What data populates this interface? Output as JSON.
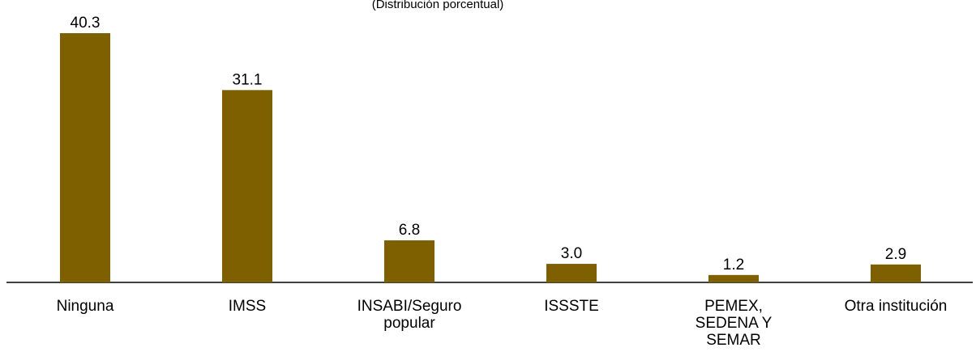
{
  "chart_data": {
    "type": "bar",
    "subtitle": "(Distribución porcentual)",
    "categories": [
      "Ninguna",
      "IMSS",
      "INSABI/Seguro popular",
      "ISSSTE",
      "PEMEX, SEDENA Y SEMAR",
      "Otra institución"
    ],
    "values": [
      40.3,
      31.1,
      6.8,
      3.0,
      1.2,
      2.9
    ],
    "value_labels": [
      "40.3",
      "31.1",
      "6.8",
      "3.0",
      "1.2",
      "2.9"
    ],
    "color": "#7f6000"
  }
}
